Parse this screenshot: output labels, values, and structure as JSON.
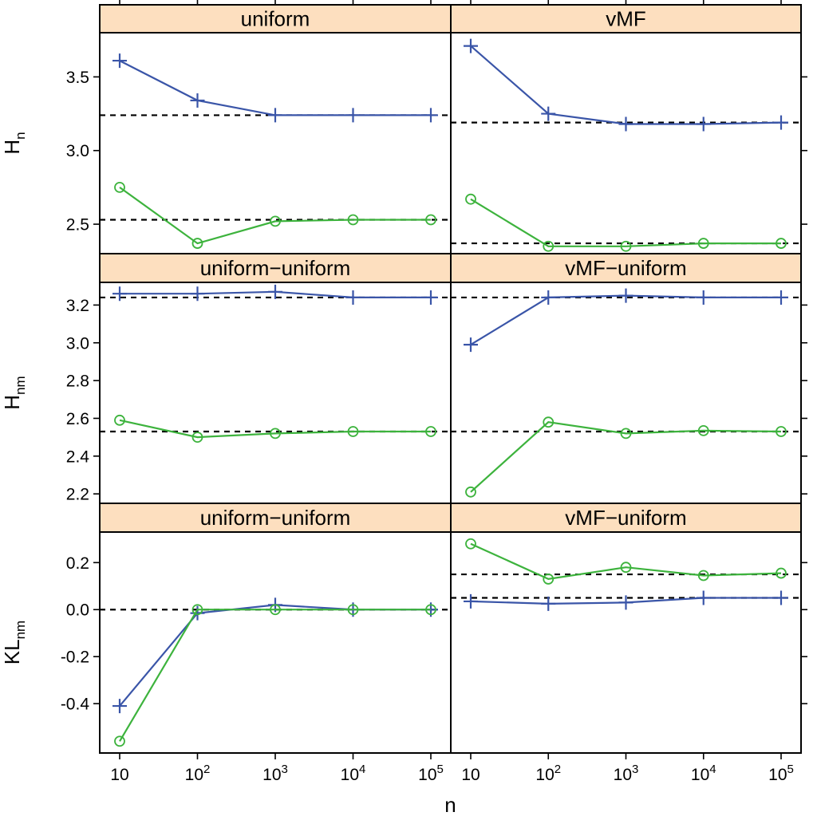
{
  "chart_data": {
    "type": "line",
    "layout": "3 rows x 2 columns lattice",
    "x": [
      10,
      100,
      1000,
      10000,
      100000
    ],
    "x_scale": "log10",
    "xlim": [
      7,
      140000
    ],
    "xlabel": "n",
    "x_ticks": [
      {
        "value": 10,
        "base": "10",
        "exp": ""
      },
      {
        "value": 100,
        "base": "10",
        "exp": "2"
      },
      {
        "value": 1000,
        "base": "10",
        "exp": "3"
      },
      {
        "value": 10000,
        "base": "10",
        "exp": "4"
      },
      {
        "value": 100000,
        "base": "10",
        "exp": "5"
      }
    ],
    "colors": {
      "blue": "#3a55a8",
      "green": "#3db33d"
    },
    "rows": [
      {
        "ylabel_main": "H",
        "ylabel_sub": "n",
        "ylim": [
          2.3,
          3.8
        ],
        "y_ticks": [
          {
            "value": 2.5,
            "label": "2.5"
          },
          {
            "value": 3.0,
            "label": "3.0"
          },
          {
            "value": 3.5,
            "label": "3.5"
          }
        ],
        "panels": [
          {
            "strip": "uniform",
            "ref_lines": [
              3.24,
              2.53
            ],
            "series": [
              {
                "name": "plus",
                "marker": "plus",
                "color": "#3a55a8",
                "values": [
                  3.61,
                  3.34,
                  3.24,
                  3.24,
                  3.24
                ]
              },
              {
                "name": "circle",
                "marker": "circle",
                "color": "#3db33d",
                "values": [
                  2.75,
                  2.37,
                  2.52,
                  2.53,
                  2.53
                ]
              }
            ]
          },
          {
            "strip": "vMF",
            "ref_lines": [
              3.19,
              2.37
            ],
            "series": [
              {
                "name": "plus",
                "marker": "plus",
                "color": "#3a55a8",
                "values": [
                  3.71,
                  3.25,
                  3.18,
                  3.18,
                  3.19
                ]
              },
              {
                "name": "circle",
                "marker": "circle",
                "color": "#3db33d",
                "values": [
                  2.67,
                  2.35,
                  2.35,
                  2.37,
                  2.37
                ]
              }
            ]
          }
        ]
      },
      {
        "ylabel_main": "H",
        "ylabel_sub": "nm",
        "ylim": [
          2.15,
          3.32
        ],
        "y_ticks": [
          {
            "value": 2.2,
            "label": "2.2"
          },
          {
            "value": 2.4,
            "label": "2.4"
          },
          {
            "value": 2.6,
            "label": "2.6"
          },
          {
            "value": 2.8,
            "label": "2.8"
          },
          {
            "value": 3.0,
            "label": "3.0"
          },
          {
            "value": 3.2,
            "label": "3.2"
          }
        ],
        "panels": [
          {
            "strip": "uniform−uniform",
            "ref_lines": [
              3.24,
              2.53
            ],
            "series": [
              {
                "name": "plus",
                "marker": "plus",
                "color": "#3a55a8",
                "values": [
                  3.26,
                  3.26,
                  3.27,
                  3.24,
                  3.24
                ]
              },
              {
                "name": "circle",
                "marker": "circle",
                "color": "#3db33d",
                "values": [
                  2.59,
                  2.5,
                  2.52,
                  2.53,
                  2.53
                ]
              }
            ]
          },
          {
            "strip": "vMF−uniform",
            "ref_lines": [
              3.24,
              2.53
            ],
            "series": [
              {
                "name": "plus",
                "marker": "plus",
                "color": "#3a55a8",
                "values": [
                  2.99,
                  3.24,
                  3.25,
                  3.24,
                  3.24
                ]
              },
              {
                "name": "circle",
                "marker": "circle",
                "color": "#3db33d",
                "values": [
                  2.21,
                  2.58,
                  2.52,
                  2.535,
                  2.53
                ]
              }
            ]
          }
        ]
      },
      {
        "ylabel_main": "KL",
        "ylabel_sub": "nm",
        "ylim": [
          -0.61,
          0.33
        ],
        "y_ticks": [
          {
            "value": -0.4,
            "label": "-0.4"
          },
          {
            "value": -0.2,
            "label": "-0.2"
          },
          {
            "value": 0.0,
            "label": "0.0"
          },
          {
            "value": 0.2,
            "label": "0.2"
          }
        ],
        "panels": [
          {
            "strip": "uniform−uniform",
            "ref_lines": [
              0.0
            ],
            "series": [
              {
                "name": "plus",
                "marker": "plus",
                "color": "#3a55a8",
                "values": [
                  -0.41,
                  -0.015,
                  0.02,
                  0.0,
                  0.0
                ]
              },
              {
                "name": "circle",
                "marker": "circle",
                "color": "#3db33d",
                "values": [
                  -0.56,
                  0.0,
                  0.0,
                  0.0,
                  0.0
                ]
              }
            ]
          },
          {
            "strip": "vMF−uniform",
            "ref_lines": [
              0.15,
              0.05
            ],
            "series": [
              {
                "name": "plus",
                "marker": "plus",
                "color": "#3a55a8",
                "values": [
                  0.035,
                  0.025,
                  0.03,
                  0.05,
                  0.05
                ]
              },
              {
                "name": "circle",
                "marker": "circle",
                "color": "#3db33d",
                "values": [
                  0.28,
                  0.13,
                  0.18,
                  0.145,
                  0.155
                ]
              }
            ]
          }
        ]
      }
    ]
  }
}
